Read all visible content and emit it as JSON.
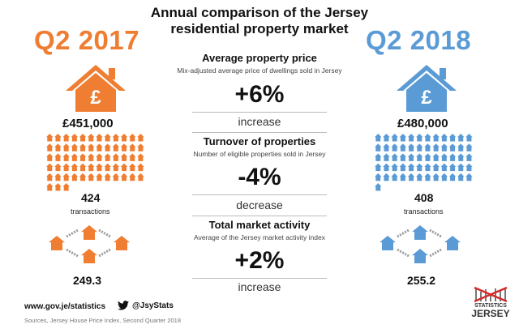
{
  "title_line1": "Annual comparison of the Jersey",
  "title_line2": "residential property market",
  "left": {
    "period": "Q2 2017",
    "price": "£451,000",
    "transactions_count": "424",
    "transactions_label": "transactions",
    "activity_index": "249.3",
    "color": "#ef7d32"
  },
  "right": {
    "period": "Q2 2018",
    "price": "£480,000",
    "transactions_count": "408",
    "transactions_label": "transactions",
    "activity_index": "255.2",
    "color": "#5b9bd5"
  },
  "sections": [
    {
      "title": "Average property price",
      "subtitle": "Mix-adjusted average price of dwellings sold in Jersey",
      "change": "+6%",
      "direction": "increase"
    },
    {
      "title": "Turnover of properties",
      "subtitle": "Number of eligible properties sold in Jersey",
      "change": "-4%",
      "direction": "decrease"
    },
    {
      "title": "Total market activity",
      "subtitle": "Average of the Jersey market activity index",
      "change": "+2%",
      "direction": "increase"
    }
  ],
  "footer": {
    "website": "www.gov.je/statistics",
    "twitter": "@JsyStats",
    "source": "Sources, Jersey House Price Index, Second Quarter 2018"
  },
  "logo": {
    "line1": "STATISTICS",
    "line2": "JERSEY"
  }
}
